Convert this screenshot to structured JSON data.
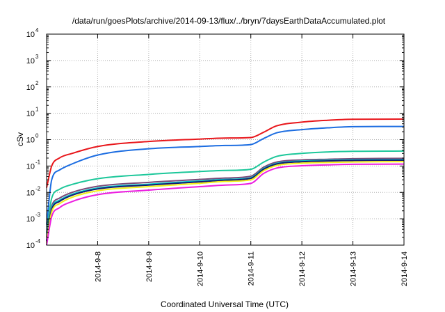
{
  "chart_data": {
    "type": "line",
    "title": "/data/run/goesPlots/archive/2014-09-13/flux/../bryn/7daysEarthDataAccumulated.plot",
    "xlabel": "Coordinated Universal Time (UTC)",
    "ylabel": "cSv",
    "y_scale": "log",
    "ylim": [
      0.0001,
      10000
    ],
    "xlim": [
      "2014-09-07",
      "2014-09-14"
    ],
    "grid": true,
    "x_ticks": [
      "2014-9-8",
      "2014-9-9",
      "2014-9-10",
      "2014-9-11",
      "2014-9-12",
      "2014-9-13",
      "2014-9-14"
    ],
    "y_ticks": [
      {
        "base": "10",
        "exp": "-4",
        "value": 0.0001
      },
      {
        "base": "10",
        "exp": "-3",
        "value": 0.001
      },
      {
        "base": "10",
        "exp": "-2",
        "value": 0.01
      },
      {
        "base": "10",
        "exp": "-1",
        "value": 0.1
      },
      {
        "base": "10",
        "exp": "0",
        "value": 1
      },
      {
        "base": "10",
        "exp": "1",
        "value": 10
      },
      {
        "base": "10",
        "exp": "2",
        "value": 100
      },
      {
        "base": "10",
        "exp": "3",
        "value": 1000
      },
      {
        "base": "10",
        "exp": "4",
        "value": 10000
      }
    ],
    "series": [
      {
        "color": "#e8161b",
        "x": [
          "2014-09-07 00:00",
          "2014-09-07 02:24",
          "2014-09-07 06:00",
          "2014-09-07 12:00",
          "2014-09-08 00:00",
          "2014-09-09 00:00",
          "2014-09-10 00:00",
          "2014-09-10 12:00",
          "2014-09-11 00:00",
          "2014-09-11 06:00",
          "2014-09-11 12:00",
          "2014-09-12 00:00",
          "2014-09-12 12:00",
          "2014-09-13 00:00",
          "2014-09-14 00:00"
        ],
        "y": [
          0.015,
          0.1,
          0.2,
          0.3,
          0.55,
          0.85,
          1.05,
          1.15,
          1.2,
          1.9,
          3.3,
          4.6,
          5.4,
          5.9,
          6.0
        ]
      },
      {
        "color": "#1c6de1",
        "x": [
          "2014-09-07 00:00",
          "2014-09-07 02:24",
          "2014-09-07 06:00",
          "2014-09-07 12:00",
          "2014-09-08 00:00",
          "2014-09-09 00:00",
          "2014-09-10 00:00",
          "2014-09-10 12:00",
          "2014-09-11 00:00",
          "2014-09-11 06:00",
          "2014-09-11 12:00",
          "2014-09-12 00:00",
          "2014-09-12 12:00",
          "2014-09-13 00:00",
          "2014-09-14 00:00"
        ],
        "y": [
          0.0006,
          0.03,
          0.07,
          0.12,
          0.26,
          0.45,
          0.55,
          0.6,
          0.65,
          1.1,
          1.8,
          2.4,
          2.8,
          3.1,
          3.15
        ]
      },
      {
        "color": "#1cc79a",
        "x": [
          "2014-09-07 00:00",
          "2014-09-07 02:24",
          "2014-09-07 06:00",
          "2014-09-07 12:00",
          "2014-09-08 00:00",
          "2014-09-09 00:00",
          "2014-09-10 00:00",
          "2014-09-10 12:00",
          "2014-09-11 00:00",
          "2014-09-11 06:00",
          "2014-09-11 12:00",
          "2014-09-12 00:00",
          "2014-09-12 12:00",
          "2014-09-13 00:00",
          "2014-09-14 00:00"
        ],
        "y": [
          0.0003,
          0.006,
          0.013,
          0.02,
          0.033,
          0.048,
          0.062,
          0.068,
          0.075,
          0.14,
          0.23,
          0.3,
          0.34,
          0.36,
          0.37
        ]
      },
      {
        "color": "#7a4a78",
        "x": [
          "2014-09-07 00:00",
          "2014-09-07 02:24",
          "2014-09-07 06:00",
          "2014-09-07 12:00",
          "2014-09-08 00:00",
          "2014-09-09 00:00",
          "2014-09-10 00:00",
          "2014-09-10 12:00",
          "2014-09-11 00:00",
          "2014-09-11 06:00",
          "2014-09-11 12:00",
          "2014-09-12 00:00",
          "2014-09-12 12:00",
          "2014-09-13 00:00",
          "2014-09-14 00:00"
        ],
        "y": [
          0.0002,
          0.003,
          0.006,
          0.01,
          0.017,
          0.024,
          0.031,
          0.035,
          0.041,
          0.09,
          0.14,
          0.17,
          0.18,
          0.19,
          0.195
        ]
      },
      {
        "color": "#00c0c8",
        "x": [
          "2014-09-07 00:00",
          "2014-09-07 02:24",
          "2014-09-07 06:00",
          "2014-09-07 12:00",
          "2014-09-08 00:00",
          "2014-09-09 00:00",
          "2014-09-10 00:00",
          "2014-09-10 12:00",
          "2014-09-11 00:00",
          "2014-09-11 06:00",
          "2014-09-11 12:00",
          "2014-09-12 00:00",
          "2014-09-12 12:00",
          "2014-09-13 00:00",
          "2014-09-14 00:00"
        ],
        "y": [
          0.00015,
          0.0025,
          0.005,
          0.0085,
          0.0145,
          0.0205,
          0.027,
          0.031,
          0.036,
          0.08,
          0.125,
          0.155,
          0.165,
          0.172,
          0.176
        ]
      },
      {
        "color": "#151c6e",
        "x": [
          "2014-09-07 00:00",
          "2014-09-07 02:24",
          "2014-09-07 06:00",
          "2014-09-07 12:00",
          "2014-09-08 00:00",
          "2014-09-09 00:00",
          "2014-09-10 00:00",
          "2014-09-10 12:00",
          "2014-09-11 00:00",
          "2014-09-11 06:00",
          "2014-09-11 12:00",
          "2014-09-12 00:00",
          "2014-09-12 12:00",
          "2014-09-13 00:00",
          "2014-09-14 00:00"
        ],
        "y": [
          0.00014,
          0.0022,
          0.0045,
          0.0078,
          0.0135,
          0.019,
          0.025,
          0.029,
          0.034,
          0.075,
          0.118,
          0.145,
          0.155,
          0.162,
          0.166
        ]
      },
      {
        "color": "#f3f018",
        "x": [
          "2014-09-07 00:00",
          "2014-09-07 02:24",
          "2014-09-07 06:00",
          "2014-09-07 12:00",
          "2014-09-08 00:00",
          "2014-09-09 00:00",
          "2014-09-10 00:00",
          "2014-09-10 12:00",
          "2014-09-11 00:00",
          "2014-09-11 06:00",
          "2014-09-11 12:00",
          "2014-09-12 00:00",
          "2014-09-12 12:00",
          "2014-09-13 00:00",
          "2014-09-14 00:00"
        ],
        "y": [
          0.00012,
          0.0018,
          0.0037,
          0.0065,
          0.0115,
          0.0165,
          0.022,
          0.026,
          0.03,
          0.066,
          0.104,
          0.128,
          0.136,
          0.142,
          0.146
        ]
      },
      {
        "color": "#ec1ee0",
        "x": [
          "2014-09-07 00:00",
          "2014-09-07 02:24",
          "2014-09-07 06:00",
          "2014-09-07 12:00",
          "2014-09-08 00:00",
          "2014-09-09 00:00",
          "2014-09-10 00:00",
          "2014-09-10 12:00",
          "2014-09-11 00:00",
          "2014-09-11 06:00",
          "2014-09-11 12:00",
          "2014-09-12 00:00",
          "2014-09-12 12:00",
          "2014-09-13 00:00",
          "2014-09-14 00:00"
        ],
        "y": [
          0.0001,
          0.0012,
          0.0026,
          0.0045,
          0.0082,
          0.0122,
          0.0165,
          0.019,
          0.022,
          0.052,
          0.083,
          0.102,
          0.11,
          0.116,
          0.118
        ]
      }
    ]
  }
}
